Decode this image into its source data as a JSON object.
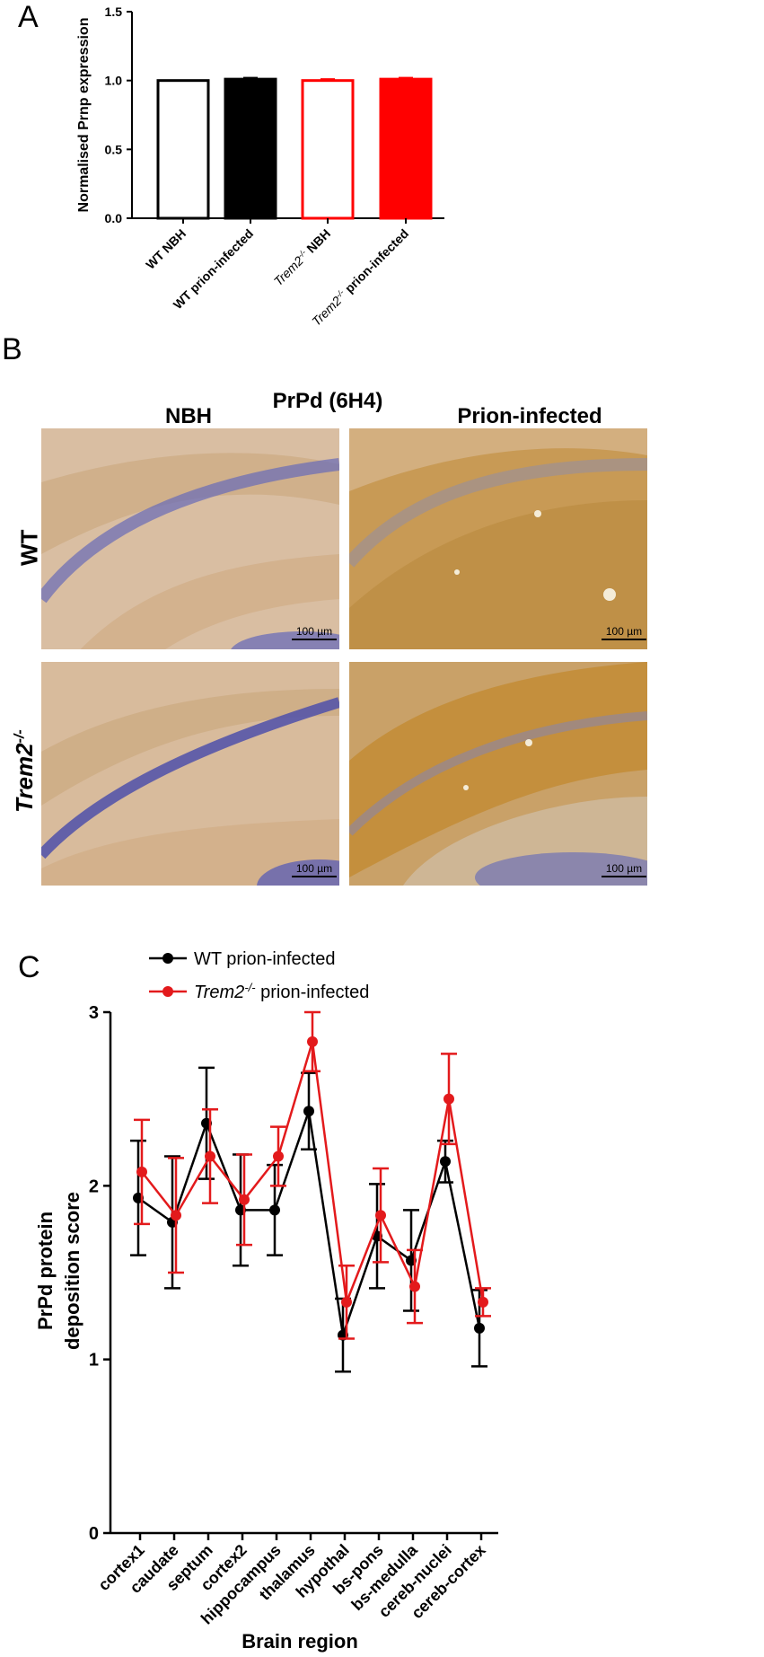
{
  "panels": {
    "a": "A",
    "b": "B",
    "c": "C"
  },
  "chart_data": [
    {
      "type": "bar",
      "ylabel": "Normalised Prnp expression",
      "ylim": [
        0,
        1.5
      ],
      "yticks": [
        "0.0",
        "0.5",
        "1.0",
        "1.5"
      ],
      "categories": [
        {
          "prefix": "WT",
          "sup": "",
          "rest": " NBH",
          "italic": false
        },
        {
          "prefix": "WT",
          "sup": "",
          "rest": " prion-infected",
          "italic": false
        },
        {
          "prefix": "Trem2",
          "sup": "-/-",
          "rest": " NBH",
          "italic": true
        },
        {
          "prefix": "Trem2",
          "sup": "-/-",
          "rest": " prion-infected",
          "italic": true
        }
      ],
      "values": [
        1.0,
        1.01,
        1.0,
        1.01
      ],
      "errors": [
        0.0,
        0.01,
        0.01,
        0.01
      ],
      "fills": [
        "#ffffff",
        "#000000",
        "#ffffff",
        "#ff0000"
      ],
      "strokes": [
        "#000000",
        "#000000",
        "#ff0000",
        "#ff0000"
      ]
    },
    {
      "type": "line",
      "xlabel": "Brain region",
      "ylabel_lines": [
        "PrPd protein",
        "deposition score"
      ],
      "ylim": [
        0,
        3
      ],
      "yticks": [
        "0",
        "1",
        "2",
        "3"
      ],
      "categories": [
        "cortex1",
        "caudate",
        "septum",
        "cortex2",
        "hippocampus",
        "thalamus",
        "hypothal",
        "bs-pons",
        "bs-medulla",
        "cereb-nuclei",
        "cereb-cortex"
      ],
      "legend_position": "top-left",
      "series": [
        {
          "name_prefix": "WT",
          "name_sup": "",
          "name_rest": " prion-infected",
          "italic": false,
          "color": "#000000",
          "values": [
            1.93,
            1.79,
            2.36,
            1.86,
            1.86,
            2.43,
            1.14,
            1.71,
            1.57,
            2.14,
            1.18
          ],
          "errors": [
            0.33,
            0.38,
            0.32,
            0.32,
            0.26,
            0.22,
            0.21,
            0.3,
            0.29,
            0.12,
            0.22
          ]
        },
        {
          "name_prefix": "Trem2",
          "name_sup": "-/-",
          "name_rest": " prion-infected",
          "italic": true,
          "color": "#e31a1c",
          "values": [
            2.08,
            1.83,
            2.17,
            1.92,
            2.17,
            2.83,
            1.33,
            1.83,
            1.42,
            2.5,
            1.33
          ],
          "errors": [
            0.3,
            0.33,
            0.27,
            0.26,
            0.17,
            0.17,
            0.21,
            0.27,
            0.21,
            0.26,
            0.08
          ]
        }
      ]
    }
  ],
  "micrographs": {
    "title": "PrPd (6H4)",
    "col_headers": [
      "NBH",
      "Prion-infected"
    ],
    "row_headers": [
      {
        "prefix": "WT",
        "sup": "",
        "italic": false
      },
      {
        "prefix": "Trem2",
        "sup": "-/-",
        "italic": true
      }
    ],
    "scale_label": "100 µm"
  }
}
